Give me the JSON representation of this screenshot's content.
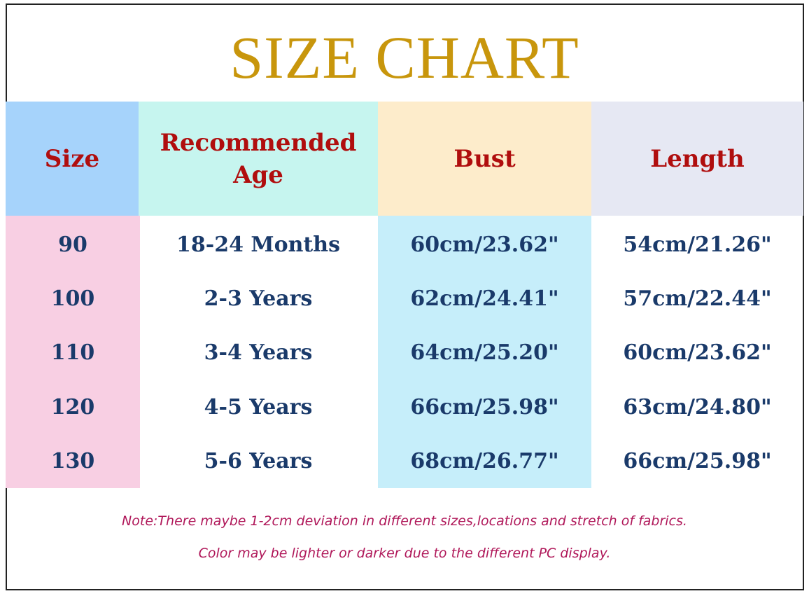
{
  "title": "SIZE CHART",
  "colors": {
    "title": "#c8960c",
    "header_text": "#b00e0e",
    "body_text": "#1a3a6a",
    "note": "#b0185a",
    "size_header": "#a6d3fb",
    "age_header": "#c6f5ef",
    "bust_header": "#fdeccb",
    "length_header": "#e6e8f3",
    "size_column": "#f8cfe3",
    "bust_column": "#c6eefa"
  },
  "headers": {
    "size": "Size",
    "age_line1": "Recommended",
    "age_line2": "Age",
    "bust": "Bust",
    "length": "Length"
  },
  "rows": [
    {
      "size": "90",
      "age": "18-24 Months",
      "bust": "60cm/23.62\"",
      "length": "54cm/21.26\""
    },
    {
      "size": "100",
      "age": "2-3 Years",
      "bust": "62cm/24.41\"",
      "length": "57cm/22.44\""
    },
    {
      "size": "110",
      "age": "3-4 Years",
      "bust": "64cm/25.20\"",
      "length": "60cm/23.62\""
    },
    {
      "size": "120",
      "age": "4-5 Years",
      "bust": "66cm/25.98\"",
      "length": "63cm/24.80\""
    },
    {
      "size": "130",
      "age": "5-6 Years",
      "bust": "68cm/26.77\"",
      "length": "66cm/25.98\""
    }
  ],
  "notes": [
    "Note:There maybe 1-2cm deviation in different sizes,locations and stretch of fabrics.",
    "Color may be lighter or darker due to the different PC display."
  ]
}
